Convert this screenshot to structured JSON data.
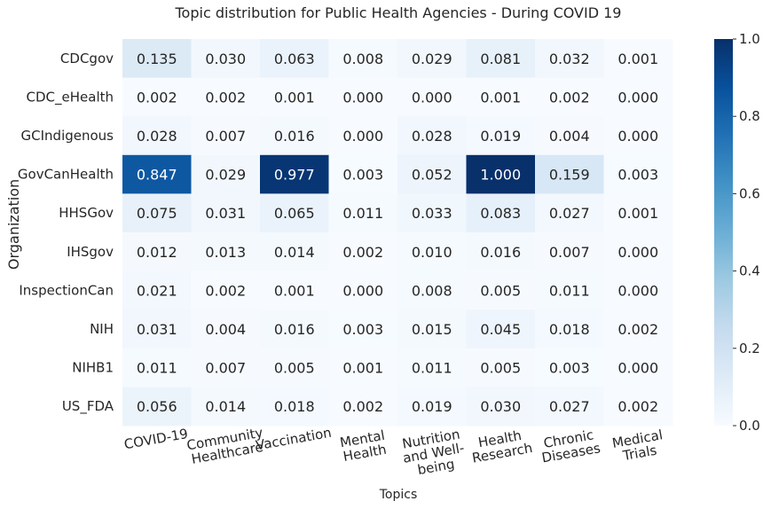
{
  "chart_data": {
    "type": "heatmap",
    "title": "Topic distribution for Public Health Agencies - During COVID 19",
    "xlabel": "Topics",
    "ylabel": "Organization",
    "colormap": "Blues",
    "vlim": [
      0,
      1
    ],
    "colorbar_ticks": [
      "0.0",
      "0.2",
      "0.4",
      "0.6",
      "0.8",
      "1.0"
    ],
    "columns": [
      [
        "COVID-19"
      ],
      [
        "Community",
        "Healthcare"
      ],
      [
        "Vaccination"
      ],
      [
        "Mental",
        "Health"
      ],
      [
        "Nutrition",
        "and Well-",
        "being"
      ],
      [
        "Health",
        "Research"
      ],
      [
        "Chronic",
        "Diseases"
      ],
      [
        "Medical",
        "Trials"
      ]
    ],
    "rows": [
      "CDCgov",
      "CDC_eHealth",
      "GCIndigenous",
      "GovCanHealth",
      "HHSGov",
      "IHSgov",
      "InspectionCan",
      "NIH",
      "NIHB1",
      "US_FDA"
    ],
    "values": [
      [
        0.135,
        0.03,
        0.063,
        0.008,
        0.029,
        0.081,
        0.032,
        0.001
      ],
      [
        0.002,
        0.002,
        0.001,
        0.0,
        0.0,
        0.001,
        0.002,
        0.0
      ],
      [
        0.028,
        0.007,
        0.016,
        0.0,
        0.028,
        0.019,
        0.004,
        0.0
      ],
      [
        0.847,
        0.029,
        0.977,
        0.003,
        0.052,
        1.0,
        0.159,
        0.003
      ],
      [
        0.075,
        0.031,
        0.065,
        0.011,
        0.033,
        0.083,
        0.027,
        0.001
      ],
      [
        0.012,
        0.013,
        0.014,
        0.002,
        0.01,
        0.016,
        0.007,
        0.0
      ],
      [
        0.021,
        0.002,
        0.001,
        0.0,
        0.008,
        0.005,
        0.011,
        0.0
      ],
      [
        0.031,
        0.004,
        0.016,
        0.003,
        0.015,
        0.045,
        0.018,
        0.002
      ],
      [
        0.011,
        0.007,
        0.005,
        0.001,
        0.011,
        0.005,
        0.003,
        0.0
      ],
      [
        0.056,
        0.014,
        0.018,
        0.002,
        0.019,
        0.03,
        0.027,
        0.002
      ]
    ]
  }
}
